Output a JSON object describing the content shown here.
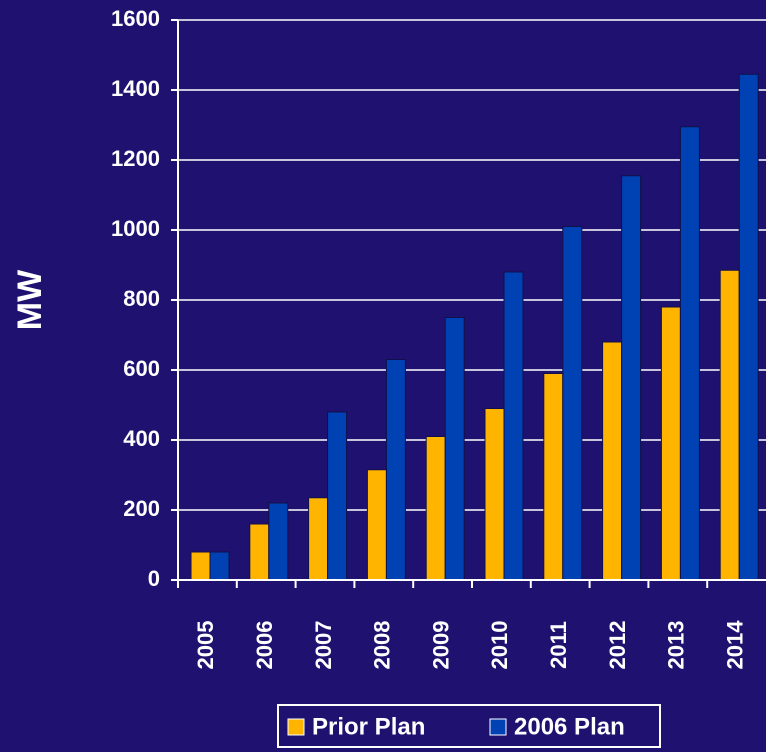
{
  "chart_data": {
    "type": "bar",
    "ylabel": "MW",
    "categories": [
      "2005",
      "2006",
      "2007",
      "2008",
      "2009",
      "2010",
      "2011",
      "2012",
      "2013",
      "2014"
    ],
    "series": [
      {
        "name": "Prior Plan",
        "color": "#ffb400",
        "values": [
          80,
          160,
          235,
          315,
          410,
          490,
          590,
          680,
          780,
          885
        ]
      },
      {
        "name": "2006 Plan",
        "color": "#0042b4",
        "values": [
          80,
          220,
          480,
          630,
          750,
          880,
          1010,
          1155,
          1295,
          1445
        ]
      }
    ],
    "ylim": [
      0,
      1600
    ],
    "yticks": [
      0,
      200,
      400,
      600,
      800,
      1000,
      1200,
      1400,
      1600
    ],
    "grid": true
  }
}
